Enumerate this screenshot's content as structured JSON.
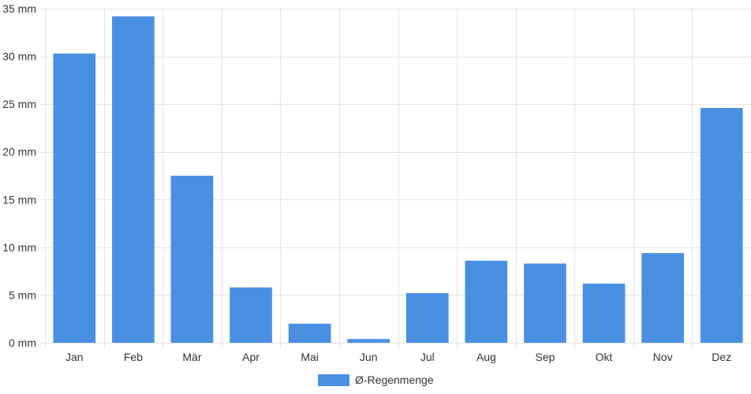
{
  "chart_data": {
    "type": "bar",
    "categories": [
      "Jan",
      "Feb",
      "Mär",
      "Apr",
      "Mai",
      "Jun",
      "Jul",
      "Aug",
      "Sep",
      "Okt",
      "Nov",
      "Dez"
    ],
    "series": [
      {
        "name": "Ø-Regenmenge",
        "color": "#4a90e2",
        "values": [
          30.3,
          34.2,
          17.5,
          5.8,
          2.0,
          0.4,
          5.2,
          8.6,
          8.3,
          6.2,
          9.4,
          24.6
        ]
      }
    ],
    "y_unit": "mm",
    "yticks": [
      0,
      5,
      10,
      15,
      20,
      25,
      30,
      35
    ],
    "ylim": [
      0,
      35
    ],
    "grid": true,
    "legend_position": "bottom-center",
    "title": "",
    "xlabel": "",
    "ylabel": ""
  }
}
